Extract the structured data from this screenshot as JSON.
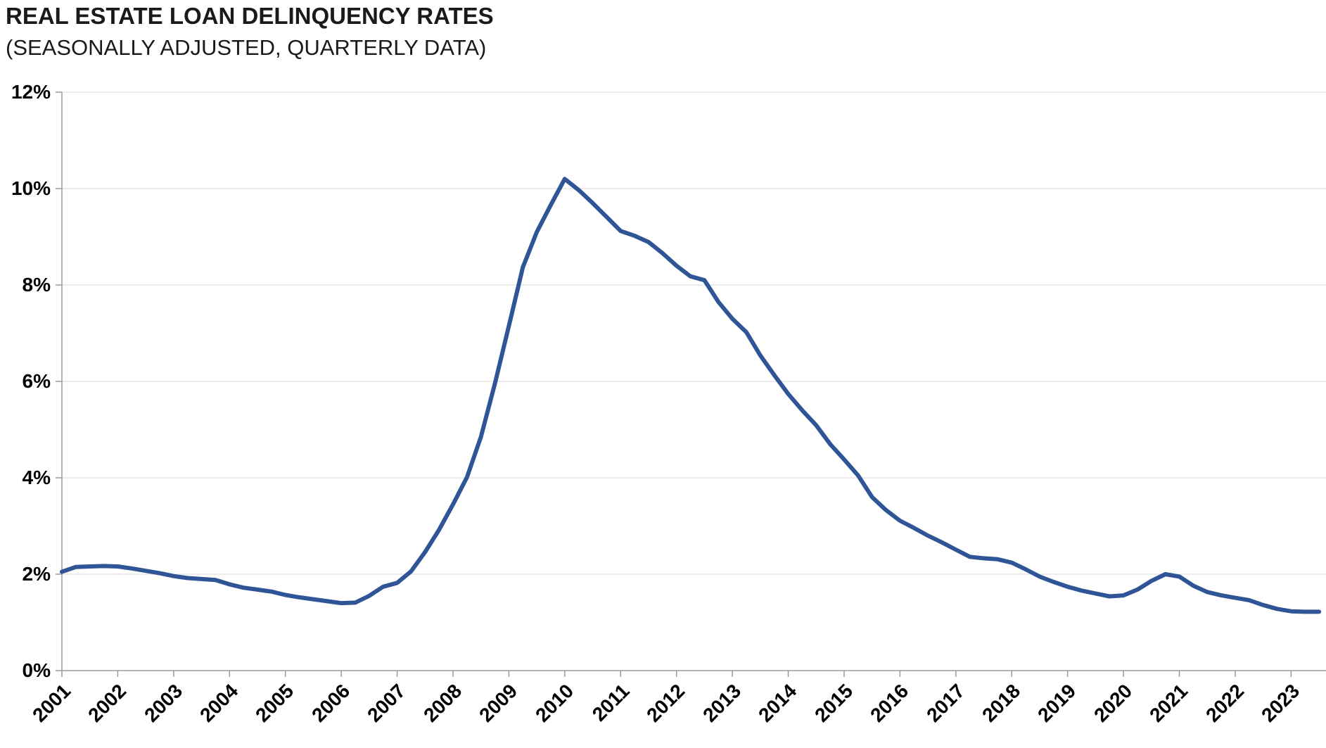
{
  "header": {
    "title": "REAL ESTATE LOAN DELINQUENCY RATES",
    "subtitle": "(SEASONALLY ADJUSTED, QUARTERLY DATA)"
  },
  "chart_data": {
    "type": "line",
    "title": "REAL ESTATE LOAN DELINQUENCY RATES",
    "subtitle": "(SEASONALLY ADJUSTED, QUARTERLY DATA)",
    "series_name": "Real estate loan delinquency rate",
    "x": [
      "2001Q1",
      "2001Q2",
      "2001Q3",
      "2001Q4",
      "2002Q1",
      "2002Q2",
      "2002Q3",
      "2002Q4",
      "2003Q1",
      "2003Q2",
      "2003Q3",
      "2003Q4",
      "2004Q1",
      "2004Q2",
      "2004Q3",
      "2004Q4",
      "2005Q1",
      "2005Q2",
      "2005Q3",
      "2005Q4",
      "2006Q1",
      "2006Q2",
      "2006Q3",
      "2006Q4",
      "2007Q1",
      "2007Q2",
      "2007Q3",
      "2007Q4",
      "2008Q1",
      "2008Q2",
      "2008Q3",
      "2008Q4",
      "2009Q1",
      "2009Q2",
      "2009Q3",
      "2009Q4",
      "2010Q1",
      "2010Q2",
      "2010Q3",
      "2010Q4",
      "2011Q1",
      "2011Q2",
      "2011Q3",
      "2011Q4",
      "2012Q1",
      "2012Q2",
      "2012Q3",
      "2012Q4",
      "2013Q1",
      "2013Q2",
      "2013Q3",
      "2013Q4",
      "2014Q1",
      "2014Q2",
      "2014Q3",
      "2014Q4",
      "2015Q1",
      "2015Q2",
      "2015Q3",
      "2015Q4",
      "2016Q1",
      "2016Q2",
      "2016Q3",
      "2016Q4",
      "2017Q1",
      "2017Q2",
      "2017Q3",
      "2017Q4",
      "2018Q1",
      "2018Q2",
      "2018Q3",
      "2018Q4",
      "2019Q1",
      "2019Q2",
      "2019Q3",
      "2019Q4",
      "2020Q1",
      "2020Q2",
      "2020Q3",
      "2020Q4",
      "2021Q1",
      "2021Q2",
      "2021Q3",
      "2021Q4",
      "2022Q1",
      "2022Q2",
      "2022Q3",
      "2022Q4",
      "2023Q1",
      "2023Q2",
      "2023Q3"
    ],
    "values": [
      2.05,
      2.15,
      2.16,
      2.17,
      2.16,
      2.12,
      2.07,
      2.02,
      1.96,
      1.92,
      1.9,
      1.88,
      1.79,
      1.72,
      1.68,
      1.64,
      1.57,
      1.52,
      1.48,
      1.44,
      1.4,
      1.41,
      1.55,
      1.74,
      1.82,
      2.06,
      2.46,
      2.92,
      3.45,
      4.01,
      4.85,
      5.95,
      7.15,
      8.37,
      9.1,
      9.66,
      10.2,
      9.97,
      9.7,
      9.41,
      9.12,
      9.02,
      8.89,
      8.66,
      8.4,
      8.18,
      8.1,
      7.65,
      7.3,
      7.02,
      6.54,
      6.13,
      5.74,
      5.4,
      5.09,
      4.7,
      4.38,
      4.05,
      3.6,
      3.33,
      3.11,
      2.96,
      2.8,
      2.66,
      2.51,
      2.36,
      2.33,
      2.31,
      2.24,
      2.1,
      1.95,
      1.84,
      1.74,
      1.66,
      1.6,
      1.54,
      1.56,
      1.68,
      1.86,
      2.0,
      1.95,
      1.76,
      1.63,
      1.56,
      1.51,
      1.46,
      1.36,
      1.28,
      1.23,
      1.22,
      1.22
    ],
    "peak": {
      "x": "2010Q1",
      "value": 10.2
    },
    "ylim": [
      0,
      12
    ],
    "y_tick_step": 2,
    "y_tick_labels": [
      "0%",
      "2%",
      "4%",
      "6%",
      "8%",
      "10%",
      "12%"
    ],
    "x_tick_labels": [
      "2001",
      "2002",
      "2003",
      "2004",
      "2005",
      "2006",
      "2007",
      "2008",
      "2009",
      "2010",
      "2011",
      "2012",
      "2013",
      "2014",
      "2015",
      "2016",
      "2017",
      "2018",
      "2019",
      "2020",
      "2021",
      "2022",
      "2023"
    ],
    "x_tick_every": 4,
    "grid": "horizontal",
    "legend": "none",
    "line_color": "#2F5597",
    "gridline_color": "#D9D9D9",
    "axis_color": "#9B9B9B",
    "text_color": "#000000"
  }
}
